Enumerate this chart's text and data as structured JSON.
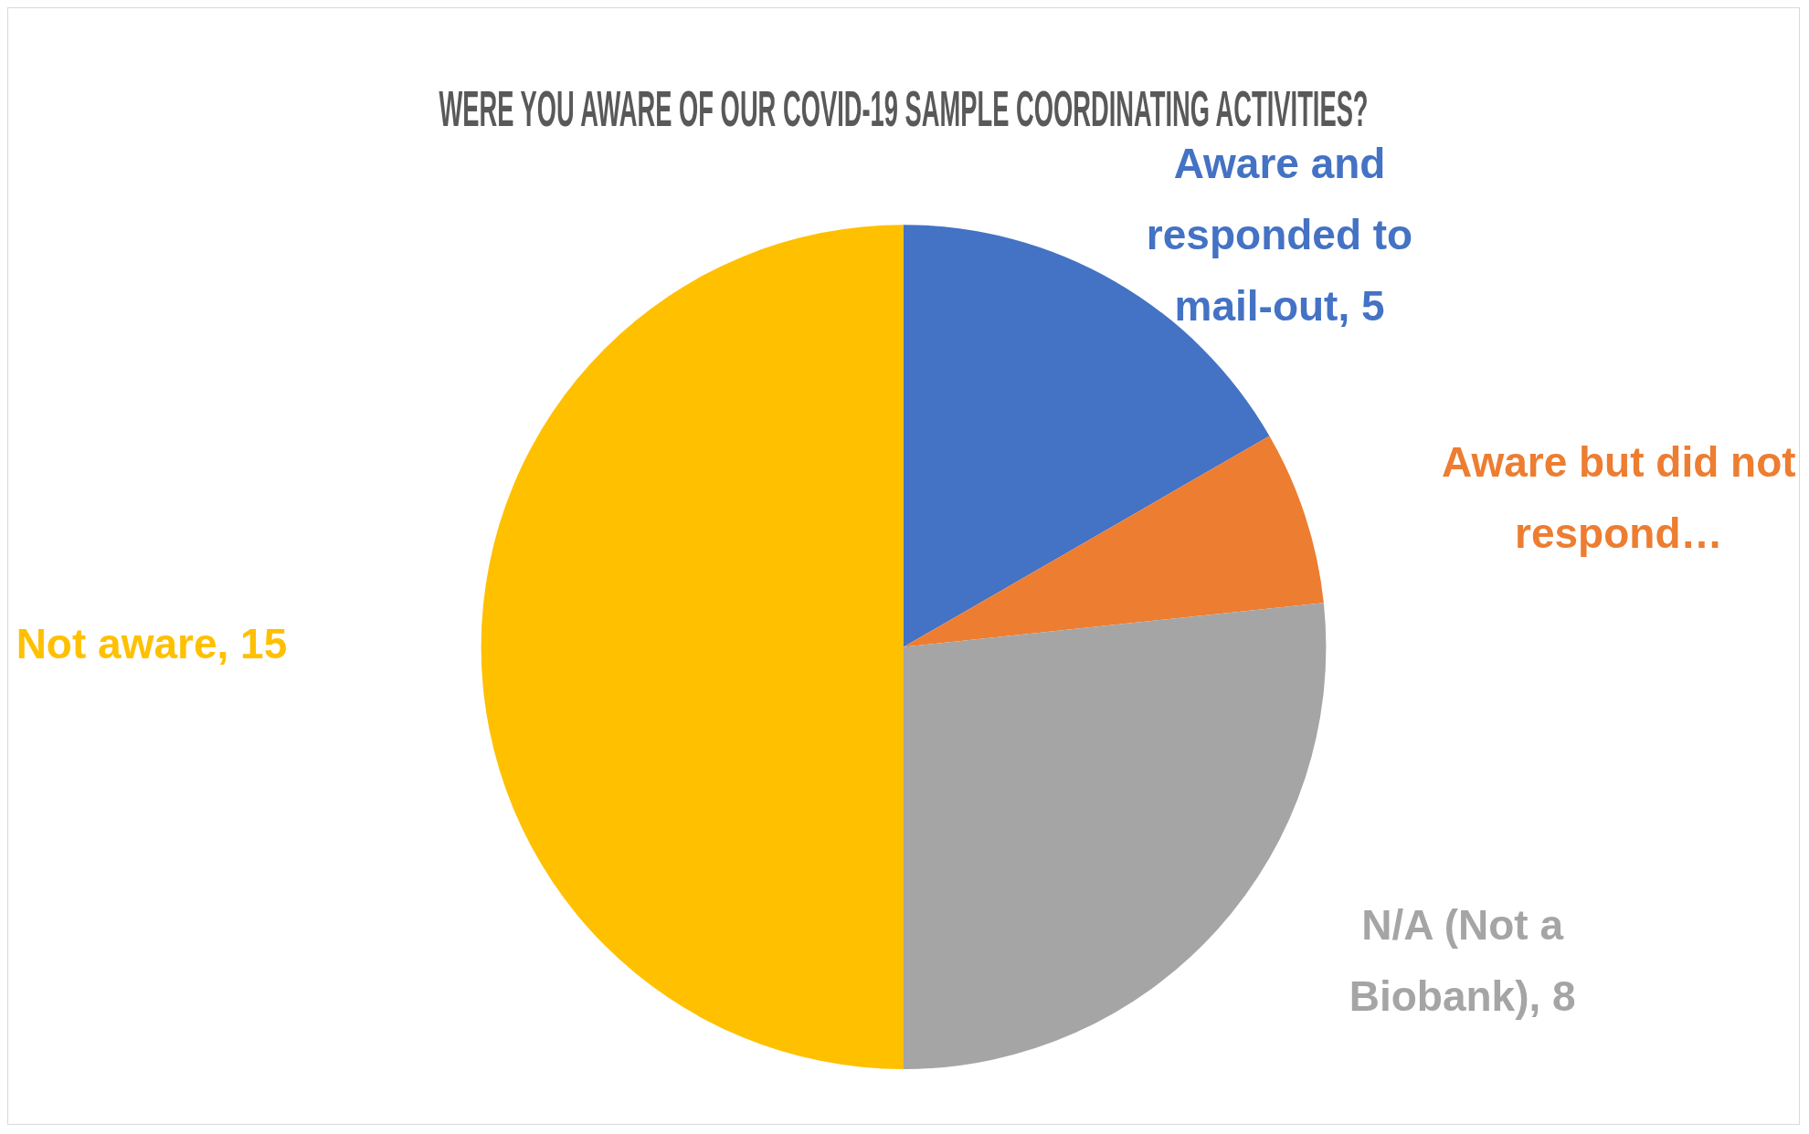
{
  "chart_data": {
    "type": "pie",
    "title": "WERE YOU AWARE OF OUR COVID-19 SAMPLE COORDINATING ACTIVITIES?",
    "categories": [
      "Aware and responded to mail-out",
      "Aware but did not respond…",
      "N/A (Not a Biobank)",
      "Not aware"
    ],
    "values": [
      5,
      2,
      8,
      15
    ],
    "value_labels": [
      "5",
      null,
      "8",
      "15"
    ],
    "colors": [
      "#4472c4",
      "#ed7d31",
      "#a5a5a5",
      "#ffc000"
    ],
    "legend": false
  }
}
